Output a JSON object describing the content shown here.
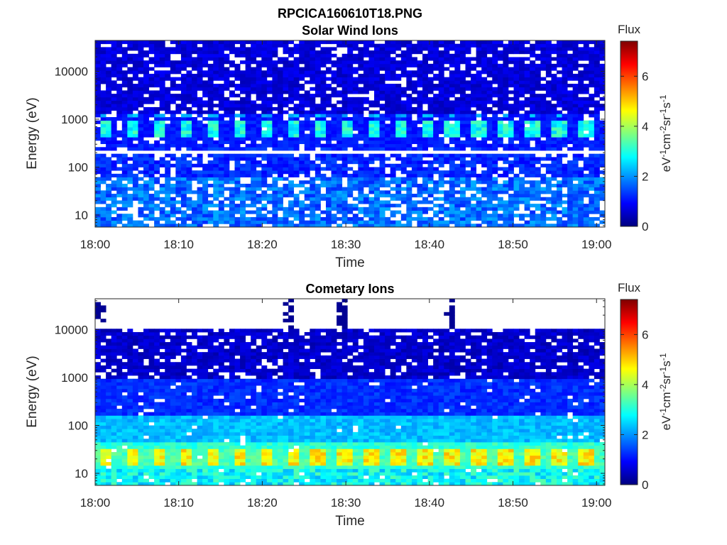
{
  "figure": {
    "title_line1": "RPCICA160610T18.PNG"
  },
  "colormap": [
    "#00007f",
    "#0000ff",
    "#007fff",
    "#00ffff",
    "#7fff7f",
    "#ffff00",
    "#ff7f00",
    "#ff0000",
    "#7f0000"
  ],
  "chart_data": [
    {
      "type": "heatmap",
      "title": "Solar Wind Ions",
      "xlabel": "Time",
      "ylabel": "Energy (eV)",
      "x_ticks": [
        "18:00",
        "18:10",
        "18:20",
        "18:30",
        "18:40",
        "18:50",
        "19:00"
      ],
      "x_range_minutes": [
        0,
        61
      ],
      "y_scale": "log",
      "y_ticks": [
        10,
        100,
        1000,
        10000
      ],
      "y_tick_labels": [
        "10",
        "100",
        "1000",
        "10000"
      ],
      "y_range_eV": [
        5.6,
        44000
      ],
      "colorbar": {
        "title": "Flux",
        "label": "eV-1cm-2sr-1s-1",
        "ticks": [
          0,
          2,
          4,
          6
        ],
        "range": [
          0,
          7.4
        ]
      },
      "features": [
        {
          "energy_eV": [
            400,
            900
          ],
          "peak_flux": 3.4,
          "periodic_minutes": 3.2
        },
        {
          "gap_energy_eV": 200
        }
      ]
    },
    {
      "type": "heatmap",
      "title": "Cometary Ions",
      "xlabel": "Time",
      "ylabel": "Energy (eV)",
      "x_ticks": [
        "18:00",
        "18:10",
        "18:20",
        "18:30",
        "18:40",
        "18:50",
        "19:00"
      ],
      "x_range_minutes": [
        0,
        61
      ],
      "y_scale": "log",
      "y_ticks": [
        10,
        100,
        1000,
        10000
      ],
      "y_tick_labels": [
        "10",
        "100",
        "1000",
        "10000"
      ],
      "y_range_eV": [
        5.6,
        44000
      ],
      "colorbar": {
        "title": "Flux",
        "label": "eV-1cm-2sr-1s-1",
        "ticks": [
          0,
          2,
          4,
          6
        ],
        "range": [
          0,
          7.4
        ]
      },
      "features": [
        {
          "energy_eV": [
            15,
            35
          ],
          "peak_flux": 5.2,
          "periodic_minutes": 3.2
        },
        {
          "isolated_high_energy_times_minutes": [
            0.5,
            23.2,
            29.5,
            42.5
          ]
        }
      ]
    }
  ]
}
